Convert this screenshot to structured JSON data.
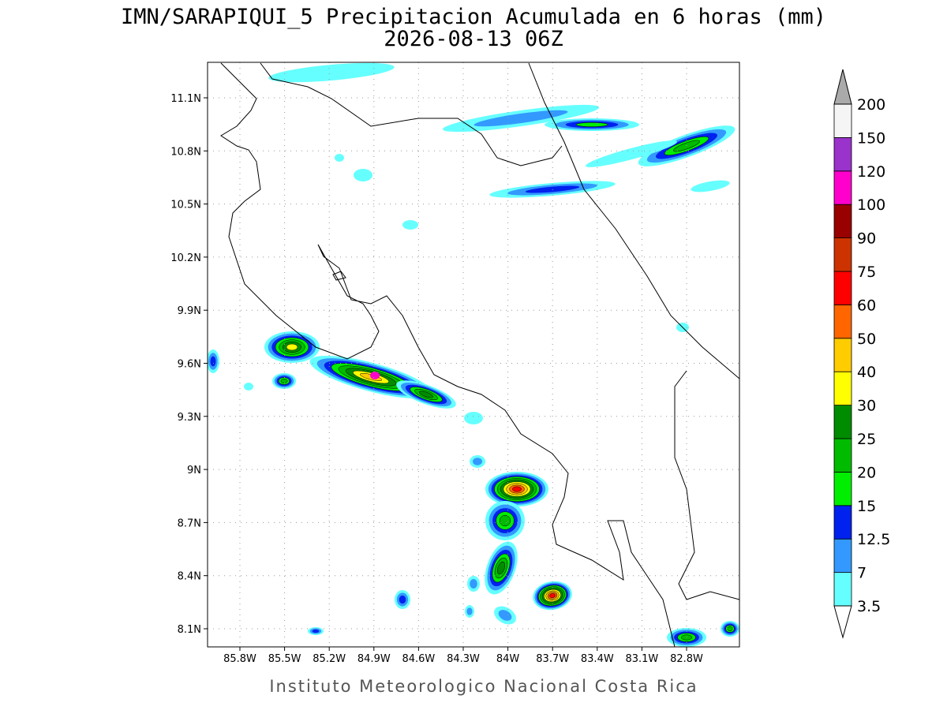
{
  "header": {
    "title": "IMN/SARAPIQUI_5 Precipitacion Acumulada en 6 horas (mm)",
    "subtitle": "2026-08-13 06Z"
  },
  "map": {
    "lon_labels": [
      "85.8W",
      "85.5W",
      "85.2W",
      "84.9W",
      "84.6W",
      "84.3W",
      "84W",
      "83.7W",
      "83.4W",
      "83.1W",
      "82.8W"
    ],
    "lat_labels": [
      "11.1N",
      "10.8N",
      "10.5N",
      "10.2N",
      "9.9N",
      "9.6N",
      "9.3N",
      "9N",
      "8.7N",
      "8.4N",
      "8.1N"
    ]
  },
  "colorbar": {
    "levels": [
      3.5,
      7,
      12.5,
      15,
      20,
      25,
      30,
      40,
      50,
      60,
      75,
      90,
      100,
      120,
      150,
      200
    ],
    "colors": [
      "#ffffff",
      "#66ffff",
      "#3399ff",
      "#0022ee",
      "#00ee00",
      "#00bb00",
      "#008c00",
      "#ffff00",
      "#ffcc00",
      "#ff6600",
      "#ff0000",
      "#cc3300",
      "#990000",
      "#ff00cc",
      "#9933cc",
      "#f5f5f5",
      "#aaaaaa"
    ]
  },
  "footer": "Instituto Meteorologico Nacional Costa Rica"
}
